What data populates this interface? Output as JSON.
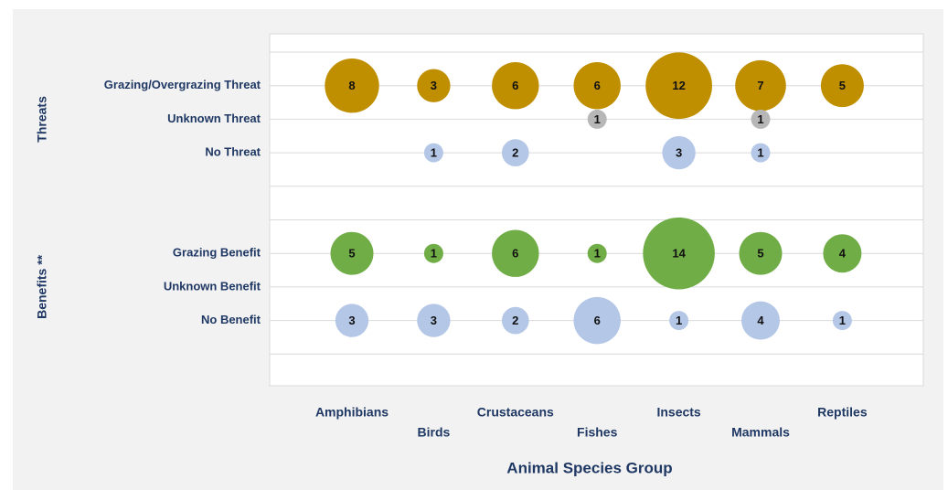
{
  "chart_data": {
    "type": "bubble",
    "x_label": "Animal Species Group",
    "categories": [
      "Amphibians",
      "Birds",
      "Crustaceans",
      "Fishes",
      "Insects",
      "Mammals",
      "Reptiles"
    ],
    "groups": [
      {
        "name": "Threats",
        "rows": [
          0,
          1,
          2
        ]
      },
      {
        "name": "Benefits **",
        "rows": [
          3,
          4,
          5
        ]
      }
    ],
    "series": [
      {
        "name": "Grazing/Overgrazing Threat",
        "color": "#bf8f00",
        "values": [
          8,
          3,
          6,
          6,
          12,
          7,
          5
        ]
      },
      {
        "name": "Unknown Threat",
        "color": "#b7b7b7",
        "values": [
          null,
          null,
          null,
          1,
          null,
          1,
          null
        ]
      },
      {
        "name": "No Threat",
        "color": "#b4c7e7",
        "values": [
          null,
          1,
          2,
          null,
          3,
          1,
          null
        ]
      },
      {
        "name": "Grazing Benefit",
        "color": "#70ad47",
        "values": [
          5,
          1,
          6,
          1,
          14,
          5,
          4
        ]
      },
      {
        "name": "Unknown Benefit",
        "color": "#b4c7e7",
        "values": [
          null,
          null,
          null,
          null,
          null,
          null,
          null
        ]
      },
      {
        "name": "No Benefit",
        "color": "#b4c7e7",
        "values": [
          3,
          3,
          2,
          6,
          1,
          4,
          1
        ]
      }
    ],
    "grid": true
  }
}
